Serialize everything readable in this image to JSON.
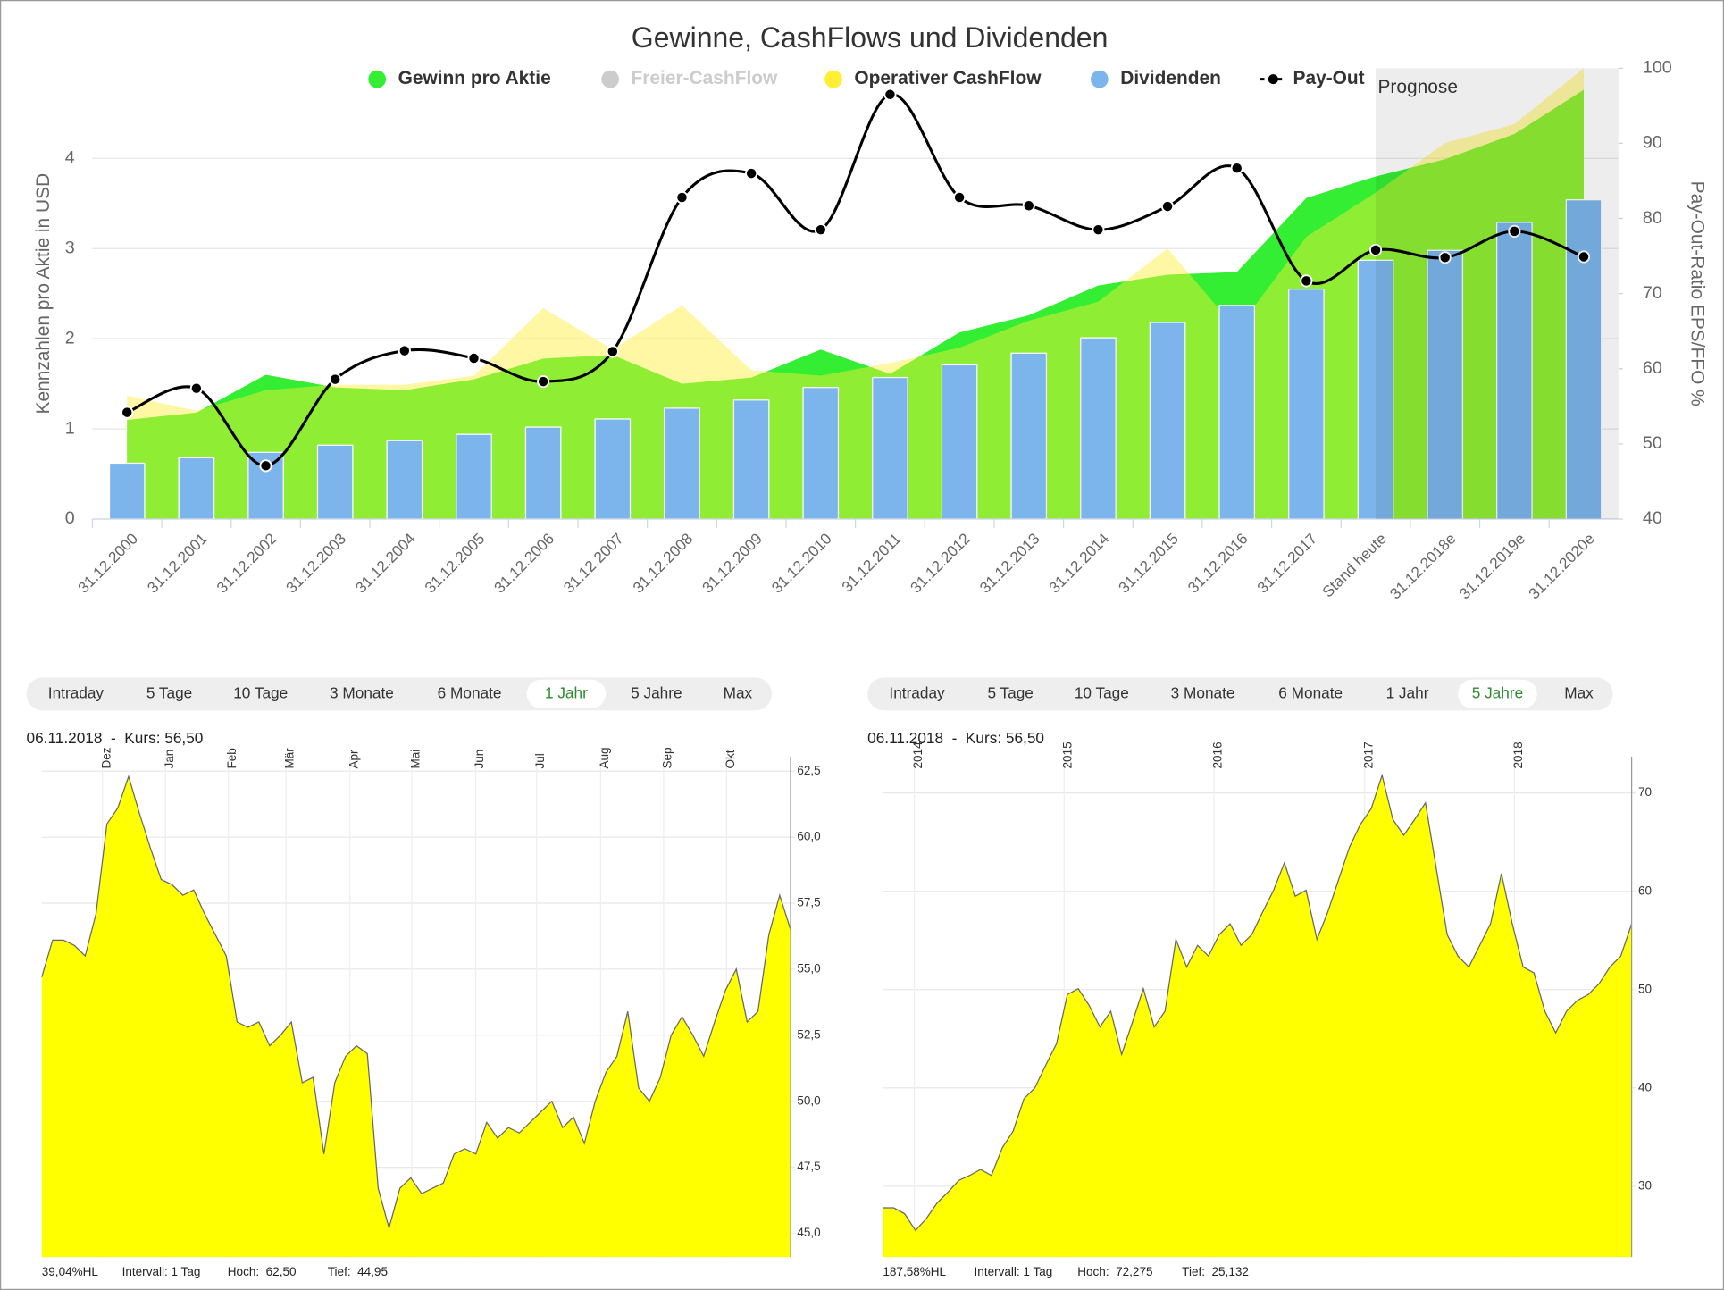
{
  "chart_data": [
    {
      "type": "combo",
      "title": "Gewinne, CashFlows und Dividenden",
      "ylabel": "Kennzahlen pro Aktie in USD",
      "y2label": "Pay-Out-Ratio EPS/FFO %",
      "forecast_label": "Prognose",
      "forecast_from_index": 18,
      "categories": [
        "31.12.2000",
        "31.12.2001",
        "31.12.2002",
        "31.12.2003",
        "31.12.2004",
        "31.12.2005",
        "31.12.2006",
        "31.12.2007",
        "31.12.2008",
        "31.12.2009",
        "31.12.2010",
        "31.12.2011",
        "31.12.2012",
        "31.12.2013",
        "31.12.2014",
        "31.12.2015",
        "31.12.2016",
        "31.12.2017",
        "Stand heute",
        "31.12.2018e",
        "31.12.2019e",
        "31.12.2020e"
      ],
      "ylim": [
        0,
        5
      ],
      "yticks": [
        0,
        1,
        2,
        3,
        4
      ],
      "y2lim": [
        40,
        100
      ],
      "y2ticks": [
        40,
        50,
        60,
        70,
        80,
        90,
        100
      ],
      "grid": true,
      "series": [
        {
          "name": "Gewinn pro Aktie",
          "kind": "area",
          "color": "#33ee33",
          "visible": true,
          "values": [
            1.1,
            1.18,
            1.6,
            1.46,
            1.43,
            1.55,
            1.78,
            1.82,
            1.5,
            1.57,
            1.88,
            1.61,
            2.07,
            2.26,
            2.59,
            2.71,
            2.74,
            3.56,
            3.8,
            3.99,
            4.27,
            4.76
          ]
        },
        {
          "name": "Freier-CashFlow",
          "kind": "area",
          "color": "#cccccc",
          "visible": false,
          "values": [
            null,
            null,
            null,
            null,
            null,
            null,
            null,
            null,
            null,
            null,
            null,
            null,
            null,
            null,
            null,
            null,
            null,
            null,
            null,
            null,
            null,
            null
          ]
        },
        {
          "name": "Operativer CashFlow",
          "kind": "area",
          "color": "#ffee33",
          "visible": true,
          "values": [
            1.37,
            1.2,
            1.43,
            1.49,
            1.49,
            1.59,
            2.34,
            1.88,
            2.37,
            1.65,
            1.59,
            1.73,
            1.9,
            2.2,
            2.41,
            3.0,
            2.1,
            3.13,
            3.62,
            4.17,
            4.38,
            5.0
          ]
        },
        {
          "name": "Dividenden",
          "kind": "bar",
          "color": "#7cb5ec",
          "visible": true,
          "values": [
            0.62,
            0.68,
            0.74,
            0.82,
            0.87,
            0.94,
            1.02,
            1.11,
            1.23,
            1.32,
            1.46,
            1.57,
            1.71,
            1.84,
            2.01,
            2.18,
            2.37,
            2.55,
            2.87,
            2.98,
            3.29,
            3.54
          ]
        },
        {
          "name": "Pay-Out",
          "kind": "line",
          "color": "#000000",
          "visible": true,
          "axis": "y2",
          "values": [
            54.2,
            57.4,
            47.1,
            58.6,
            62.4,
            61.4,
            58.3,
            62.3,
            82.8,
            86.0,
            78.5,
            96.5,
            82.8,
            81.7,
            78.5,
            81.6,
            86.7,
            71.7,
            75.8,
            74.8,
            78.3,
            74.9
          ]
        }
      ]
    },
    {
      "type": "area",
      "range_buttons": [
        "Intraday",
        "5 Tage",
        "10 Tage",
        "3 Monate",
        "6 Monate",
        "1 Jahr",
        "5 Jahre",
        "Max"
      ],
      "selected_index": 5,
      "info": "06.11.2018  -  Kurs: 56,50",
      "color": "#ffff00",
      "line_color": "#666666",
      "values": [
        54.7,
        56.1,
        56.1,
        55.9,
        55.5,
        57.1,
        60.5,
        61.1,
        62.3,
        60.9,
        59.6,
        58.4,
        58.2,
        57.8,
        58.0,
        57.1,
        56.3,
        55.5,
        53.0,
        52.8,
        53.0,
        52.1,
        52.5,
        53.0,
        50.7,
        50.9,
        48.0,
        50.7,
        51.7,
        52.1,
        51.8,
        46.7,
        45.2,
        46.7,
        47.1,
        46.5,
        46.7,
        46.9,
        48.0,
        48.2,
        48.0,
        49.2,
        48.6,
        49.0,
        48.8,
        49.2,
        49.6,
        50.0,
        49.0,
        49.4,
        48.4,
        50.0,
        51.1,
        51.7,
        53.4,
        50.5,
        50.0,
        50.9,
        52.5,
        53.2,
        52.5,
        51.7,
        53.0,
        54.2,
        55.0,
        53.0,
        53.4,
        56.3,
        57.8,
        56.5
      ],
      "xlim": [
        0,
        69
      ],
      "xticks": [
        {
          "value": 5.6,
          "label": "Dez"
        },
        {
          "value": 11.4,
          "label": "Jan"
        },
        {
          "value": 17.2,
          "label": "Feb"
        },
        {
          "value": 22.5,
          "label": "Mär"
        },
        {
          "value": 28.4,
          "label": "Apr"
        },
        {
          "value": 34.1,
          "label": "Mai"
        },
        {
          "value": 40.0,
          "label": "Jun"
        },
        {
          "value": 45.6,
          "label": "Jul"
        },
        {
          "value": 51.5,
          "label": "Aug"
        },
        {
          "value": 57.3,
          "label": "Sep"
        },
        {
          "value": 63.1,
          "label": "Okt"
        }
      ],
      "ylim": [
        44.1,
        63.05
      ],
      "yticks": [
        {
          "value": 45,
          "label": "45,0"
        },
        {
          "value": 47.5,
          "label": "47,5"
        },
        {
          "value": 50,
          "label": "50,0"
        },
        {
          "value": 52.5,
          "label": "52,5"
        },
        {
          "value": 55,
          "label": "55,0"
        },
        {
          "value": 57.5,
          "label": "57,5"
        },
        {
          "value": 60,
          "label": "60,0"
        },
        {
          "value": 62.5,
          "label": "62,5"
        }
      ],
      "footer": [
        "39,04%HL",
        "Intervall: 1 Tag",
        "Hoch:  62,50",
        "Tief:  44,95"
      ]
    },
    {
      "type": "area",
      "range_buttons": [
        "Intraday",
        "5 Tage",
        "10 Tage",
        "3 Monate",
        "6 Monate",
        "1 Jahr",
        "5 Jahre",
        "Max"
      ],
      "selected_index": 6,
      "info": "06.11.2018  -  Kurs: 56,50",
      "color": "#ffff00",
      "line_color": "#666666",
      "values": [
        27.8,
        27.8,
        27.2,
        25.5,
        26.7,
        28.3,
        29.4,
        30.6,
        31.1,
        31.7,
        31.1,
        33.9,
        35.6,
        38.9,
        40.0,
        42.3,
        44.5,
        49.5,
        50.1,
        48.4,
        46.2,
        47.8,
        43.4,
        46.7,
        50.1,
        46.2,
        47.8,
        55.1,
        52.3,
        54.5,
        53.4,
        55.6,
        56.7,
        54.5,
        55.6,
        57.9,
        60.1,
        62.9,
        59.5,
        60.1,
        55.1,
        57.9,
        61.2,
        64.5,
        66.8,
        68.4,
        71.8,
        67.3,
        65.7,
        67.3,
        69.0,
        62.3,
        55.6,
        53.4,
        52.3,
        54.5,
        56.7,
        61.8,
        56.7,
        52.3,
        51.7,
        47.8,
        45.6,
        47.8,
        48.9,
        49.5,
        50.6,
        52.3,
        53.4,
        56.7
      ],
      "xlim": [
        0,
        69
      ],
      "xticks": [
        {
          "value": 2.9,
          "label": "2014"
        },
        {
          "value": 16.7,
          "label": "2015"
        },
        {
          "value": 30.5,
          "label": "2016"
        },
        {
          "value": 44.4,
          "label": "2017"
        },
        {
          "value": 58.2,
          "label": "2018"
        }
      ],
      "ylim": [
        22.8,
        73.7
      ],
      "yticks": [
        30,
        40,
        50,
        60,
        70
      ],
      "footer": [
        "187,58%HL",
        "Intervall: 1 Tag",
        "Hoch:  72,275",
        "Tief:  25,132"
      ]
    }
  ]
}
